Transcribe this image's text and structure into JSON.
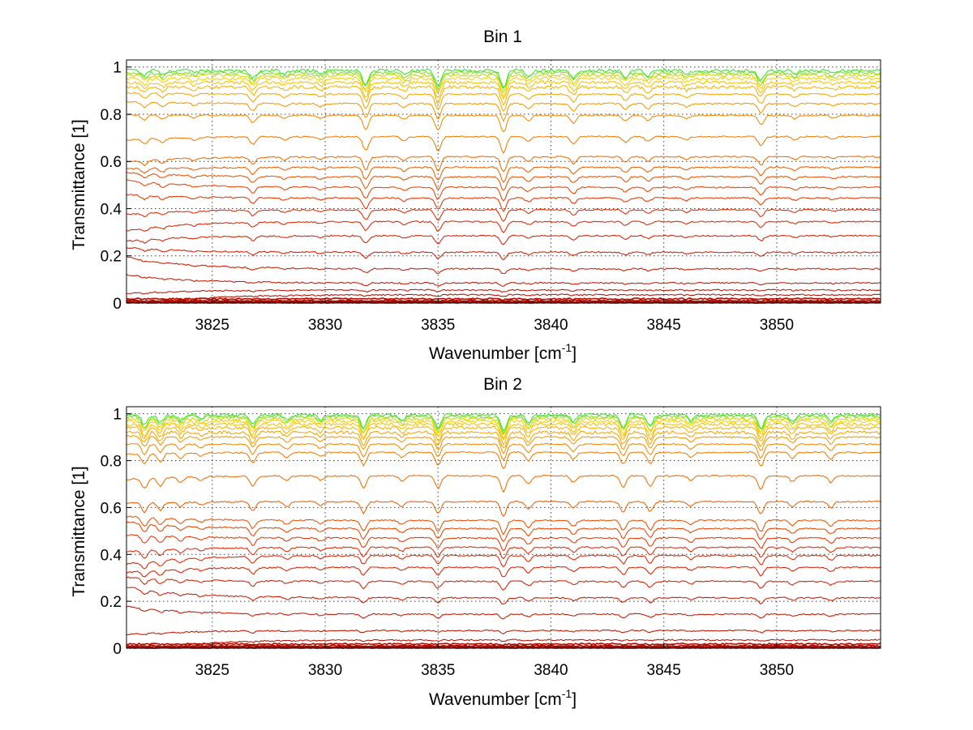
{
  "chart_data": [
    {
      "type": "line",
      "title": "Bin 1",
      "xlabel": "Wavenumber [cm",
      "xlabel_sup": "-1",
      "xlabel_end": "]",
      "ylabel": "Transmittance [1]",
      "xlim": [
        3821.2,
        3854.6
      ],
      "ylim": [
        0,
        1.03
      ],
      "xticks": [
        "3825",
        "3830",
        "3835",
        "3840",
        "3845",
        "3850"
      ],
      "yticks": [
        "0",
        "0.2",
        "0.4",
        "0.6",
        "0.8",
        "1"
      ],
      "grid": true,
      "legend": "none",
      "n_series": 28,
      "levels": [
        0.0,
        0.003,
        0.006,
        0.01,
        0.018,
        0.035,
        0.055,
        0.085,
        0.145,
        0.215,
        0.285,
        0.345,
        0.395,
        0.445,
        0.49,
        0.535,
        0.575,
        0.62,
        0.705,
        0.795,
        0.845,
        0.885,
        0.915,
        0.935,
        0.952,
        0.965,
        0.975,
        0.985
      ],
      "absorption_lines": [
        {
          "x": 3822.0,
          "depth": 0.3
        },
        {
          "x": 3822.8,
          "depth": 0.25
        },
        {
          "x": 3824.2,
          "depth": 0.15
        },
        {
          "x": 3826.8,
          "depth": 0.45
        },
        {
          "x": 3828.2,
          "depth": 0.2
        },
        {
          "x": 3829.8,
          "depth": 0.18
        },
        {
          "x": 3831.8,
          "depth": 0.85
        },
        {
          "x": 3833.5,
          "depth": 0.25
        },
        {
          "x": 3835.0,
          "depth": 0.9
        },
        {
          "x": 3837.9,
          "depth": 1.0
        },
        {
          "x": 3839.0,
          "depth": 0.3
        },
        {
          "x": 3841.0,
          "depth": 0.45
        },
        {
          "x": 3843.3,
          "depth": 0.35
        },
        {
          "x": 3844.3,
          "depth": 0.3
        },
        {
          "x": 3846.0,
          "depth": 0.2
        },
        {
          "x": 3849.3,
          "depth": 0.55
        },
        {
          "x": 3850.8,
          "depth": 0.2
        },
        {
          "x": 3852.5,
          "depth": 0.15
        }
      ]
    },
    {
      "type": "line",
      "title": "Bin 2",
      "xlabel": "Wavenumber [cm",
      "xlabel_sup": "-1",
      "xlabel_end": "]",
      "ylabel": "Transmittance [1]",
      "xlim": [
        3821.2,
        3854.6
      ],
      "ylim": [
        0,
        1.03
      ],
      "xticks": [
        "3825",
        "3830",
        "3835",
        "3840",
        "3845",
        "3850"
      ],
      "yticks": [
        "0",
        "0.2",
        "0.4",
        "0.6",
        "0.8",
        "1"
      ],
      "grid": true,
      "legend": "none",
      "n_series": 28,
      "levels": [
        0.0,
        0.003,
        0.006,
        0.01,
        0.018,
        0.035,
        0.075,
        0.145,
        0.215,
        0.285,
        0.345,
        0.395,
        0.43,
        0.47,
        0.51,
        0.545,
        0.625,
        0.735,
        0.835,
        0.87,
        0.9,
        0.92,
        0.94,
        0.955,
        0.968,
        0.978,
        0.988,
        0.995
      ],
      "absorption_lines": [
        {
          "x": 3822.0,
          "depth": 0.6
        },
        {
          "x": 3822.7,
          "depth": 0.5
        },
        {
          "x": 3823.6,
          "depth": 0.3
        },
        {
          "x": 3824.5,
          "depth": 0.2
        },
        {
          "x": 3826.8,
          "depth": 0.6
        },
        {
          "x": 3828.3,
          "depth": 0.3
        },
        {
          "x": 3829.8,
          "depth": 0.25
        },
        {
          "x": 3831.7,
          "depth": 0.75
        },
        {
          "x": 3833.4,
          "depth": 0.3
        },
        {
          "x": 3835.0,
          "depth": 0.75
        },
        {
          "x": 3837.9,
          "depth": 0.95
        },
        {
          "x": 3839.0,
          "depth": 0.5
        },
        {
          "x": 3841.0,
          "depth": 0.4
        },
        {
          "x": 3843.2,
          "depth": 0.7
        },
        {
          "x": 3844.4,
          "depth": 0.65
        },
        {
          "x": 3846.2,
          "depth": 0.3
        },
        {
          "x": 3849.3,
          "depth": 0.8
        },
        {
          "x": 3850.7,
          "depth": 0.35
        },
        {
          "x": 3852.4,
          "depth": 0.4
        }
      ]
    }
  ]
}
